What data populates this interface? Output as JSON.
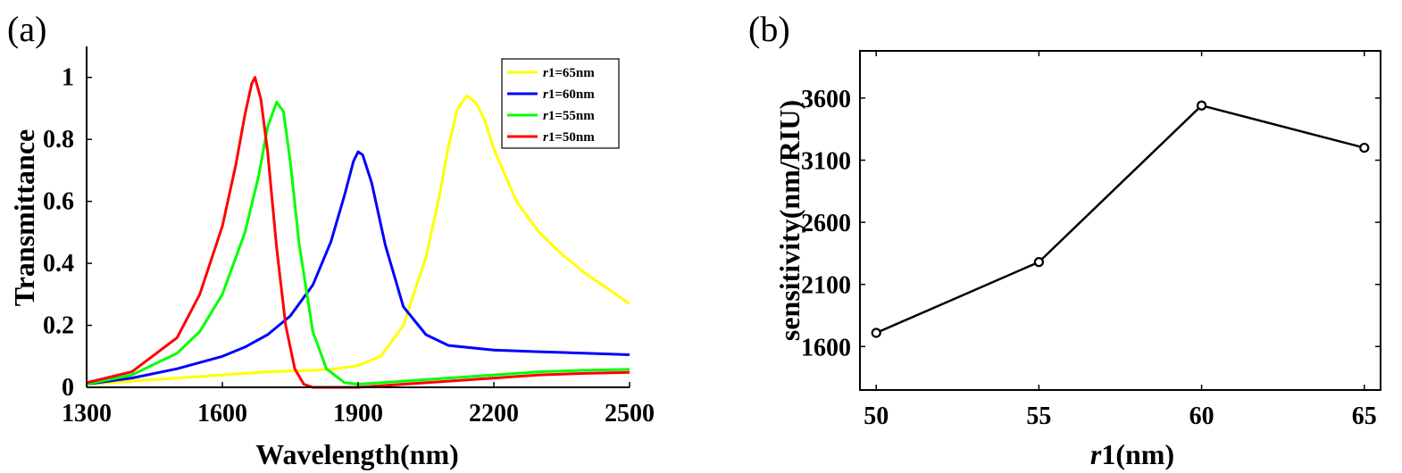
{
  "chart_data": [
    {
      "panel": "(a)",
      "type": "line",
      "xlabel": "Wavelength(nm)",
      "ylabel": "Transmittance",
      "xlim": [
        1300,
        2500
      ],
      "ylim": [
        0,
        1.1
      ],
      "xticks": [
        1300,
        1600,
        1900,
        2200,
        2500
      ],
      "yticks": [
        0,
        0.2,
        0.4,
        0.6,
        0.8,
        1
      ],
      "ytick_labels": [
        "0",
        "0.2",
        "0.4",
        "0.6",
        "0.8",
        "1"
      ],
      "legend_position": "top-right",
      "series": [
        {
          "name": "r1=65nm",
          "name_italic": "r",
          "name_rest": "1=65nm",
          "color": "#ffff00",
          "points": [
            [
              1300,
              0.01
            ],
            [
              1400,
              0.02
            ],
            [
              1500,
              0.03
            ],
            [
              1600,
              0.04
            ],
            [
              1700,
              0.05
            ],
            [
              1800,
              0.055
            ],
            [
              1850,
              0.06
            ],
            [
              1900,
              0.07
            ],
            [
              1950,
              0.1
            ],
            [
              2000,
              0.2
            ],
            [
              2050,
              0.42
            ],
            [
              2080,
              0.62
            ],
            [
              2100,
              0.78
            ],
            [
              2120,
              0.9
            ],
            [
              2140,
              0.94
            ],
            [
              2160,
              0.92
            ],
            [
              2180,
              0.86
            ],
            [
              2200,
              0.77
            ],
            [
              2250,
              0.6
            ],
            [
              2300,
              0.5
            ],
            [
              2350,
              0.43
            ],
            [
              2400,
              0.37
            ],
            [
              2450,
              0.32
            ],
            [
              2500,
              0.27
            ]
          ]
        },
        {
          "name": "r1=60nm",
          "name_italic": "r",
          "name_rest": "1=60nm",
          "color": "#0000ff",
          "points": [
            [
              1300,
              0.01
            ],
            [
              1400,
              0.03
            ],
            [
              1500,
              0.06
            ],
            [
              1600,
              0.1
            ],
            [
              1650,
              0.13
            ],
            [
              1700,
              0.17
            ],
            [
              1750,
              0.23
            ],
            [
              1800,
              0.33
            ],
            [
              1840,
              0.47
            ],
            [
              1870,
              0.62
            ],
            [
              1890,
              0.73
            ],
            [
              1900,
              0.76
            ],
            [
              1910,
              0.75
            ],
            [
              1930,
              0.66
            ],
            [
              1960,
              0.46
            ],
            [
              2000,
              0.26
            ],
            [
              2050,
              0.17
            ],
            [
              2100,
              0.135
            ],
            [
              2200,
              0.12
            ],
            [
              2300,
              0.115
            ],
            [
              2400,
              0.11
            ],
            [
              2500,
              0.105
            ]
          ]
        },
        {
          "name": "r1=55nm",
          "name_italic": "r",
          "name_rest": "1=55nm",
          "color": "#00ff00",
          "points": [
            [
              1300,
              0.01
            ],
            [
              1400,
              0.04
            ],
            [
              1500,
              0.11
            ],
            [
              1550,
              0.18
            ],
            [
              1600,
              0.3
            ],
            [
              1650,
              0.5
            ],
            [
              1680,
              0.68
            ],
            [
              1700,
              0.84
            ],
            [
              1720,
              0.92
            ],
            [
              1735,
              0.89
            ],
            [
              1750,
              0.73
            ],
            [
              1770,
              0.46
            ],
            [
              1800,
              0.18
            ],
            [
              1830,
              0.06
            ],
            [
              1870,
              0.015
            ],
            [
              1900,
              0.01
            ],
            [
              2000,
              0.02
            ],
            [
              2100,
              0.03
            ],
            [
              2200,
              0.04
            ],
            [
              2300,
              0.05
            ],
            [
              2400,
              0.055
            ],
            [
              2500,
              0.058
            ]
          ]
        },
        {
          "name": "r1=50nm",
          "name_italic": "r",
          "name_rest": "1=50nm",
          "color": "#ff0000",
          "points": [
            [
              1300,
              0.015
            ],
            [
              1400,
              0.05
            ],
            [
              1500,
              0.16
            ],
            [
              1550,
              0.3
            ],
            [
              1600,
              0.52
            ],
            [
              1630,
              0.72
            ],
            [
              1650,
              0.88
            ],
            [
              1665,
              0.98
            ],
            [
              1672,
              1.0
            ],
            [
              1685,
              0.93
            ],
            [
              1700,
              0.76
            ],
            [
              1720,
              0.45
            ],
            [
              1740,
              0.2
            ],
            [
              1760,
              0.06
            ],
            [
              1780,
              0.01
            ],
            [
              1800,
              0.0
            ],
            [
              1900,
              0.0
            ],
            [
              2000,
              0.01
            ],
            [
              2100,
              0.02
            ],
            [
              2200,
              0.03
            ],
            [
              2300,
              0.04
            ],
            [
              2400,
              0.045
            ],
            [
              2500,
              0.048
            ]
          ]
        }
      ]
    },
    {
      "panel": "(b)",
      "type": "line",
      "xlabel": "r1(nm)",
      "xlabel_italic": "r",
      "xlabel_rest": "1(nm)",
      "ylabel": "sensitivity(nm/RIU)",
      "xlim": [
        49.5,
        65.5
      ],
      "ylim": [
        1250,
        3980
      ],
      "xticks": [
        50,
        55,
        60,
        65
      ],
      "yticks": [
        1600,
        2100,
        2600,
        3100,
        3600
      ],
      "series": [
        {
          "color": "#000000",
          "marker": "circle",
          "x": [
            50,
            55,
            60,
            65
          ],
          "y": [
            1710,
            2280,
            3540,
            3200
          ]
        }
      ]
    }
  ]
}
